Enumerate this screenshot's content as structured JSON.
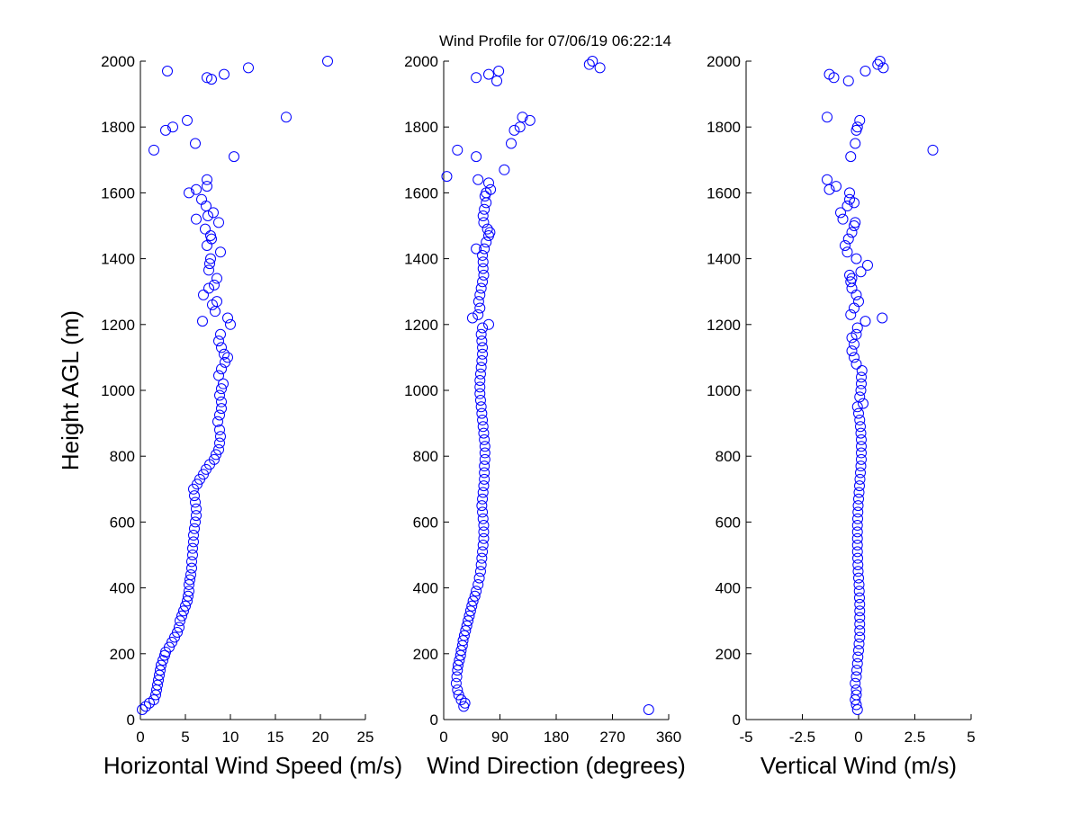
{
  "title": "Wind Profile for  07/06/19 06:22:14",
  "colors": {
    "marker": "#0000ff",
    "axis": "#000000",
    "background": "#ffffff"
  },
  "chart_data": [
    {
      "type": "scatter",
      "xlabel": "Horizontal Wind Speed (m/s)",
      "ylabel": "Height AGL (m)",
      "xlim": [
        0,
        25
      ],
      "ylim": [
        0,
        2000
      ],
      "xticks": [
        "0",
        "5",
        "10",
        "15",
        "20",
        "25"
      ],
      "yticks": [
        "0",
        "200",
        "400",
        "600",
        "800",
        "1000",
        "1200",
        "1400",
        "1600",
        "1800",
        "2000"
      ],
      "marker": "open-circle",
      "grid": false,
      "points": [
        [
          0.2,
          30
        ],
        [
          0.6,
          40
        ],
        [
          1.0,
          50
        ],
        [
          1.5,
          60
        ],
        [
          1.7,
          75
        ],
        [
          1.8,
          90
        ],
        [
          1.9,
          105
        ],
        [
          2.0,
          120
        ],
        [
          2.1,
          135
        ],
        [
          2.2,
          150
        ],
        [
          2.3,
          165
        ],
        [
          2.5,
          180
        ],
        [
          2.7,
          195
        ],
        [
          2.8,
          205
        ],
        [
          3.2,
          220
        ],
        [
          3.5,
          235
        ],
        [
          3.8,
          250
        ],
        [
          4.1,
          265
        ],
        [
          4.3,
          280
        ],
        [
          4.4,
          300
        ],
        [
          4.6,
          315
        ],
        [
          4.8,
          330
        ],
        [
          5.0,
          345
        ],
        [
          5.2,
          360
        ],
        [
          5.3,
          375
        ],
        [
          5.4,
          390
        ],
        [
          5.4,
          410
        ],
        [
          5.5,
          425
        ],
        [
          5.6,
          440
        ],
        [
          5.7,
          460
        ],
        [
          5.7,
          480
        ],
        [
          5.8,
          500
        ],
        [
          5.8,
          520
        ],
        [
          5.9,
          540
        ],
        [
          5.9,
          560
        ],
        [
          6.0,
          580
        ],
        [
          6.1,
          600
        ],
        [
          6.2,
          620
        ],
        [
          6.2,
          640
        ],
        [
          6.1,
          660
        ],
        [
          6.0,
          680
        ],
        [
          5.9,
          700
        ],
        [
          6.3,
          715
        ],
        [
          6.6,
          730
        ],
        [
          7.0,
          745
        ],
        [
          7.3,
          760
        ],
        [
          7.7,
          775
        ],
        [
          8.2,
          790
        ],
        [
          8.4,
          805
        ],
        [
          8.7,
          820
        ],
        [
          8.8,
          840
        ],
        [
          8.9,
          860
        ],
        [
          8.8,
          880
        ],
        [
          8.6,
          905
        ],
        [
          8.8,
          925
        ],
        [
          9.0,
          945
        ],
        [
          9.0,
          965
        ],
        [
          8.8,
          985
        ],
        [
          9.0,
          1005
        ],
        [
          9.2,
          1020
        ],
        [
          8.7,
          1045
        ],
        [
          9.0,
          1065
        ],
        [
          9.4,
          1085
        ],
        [
          9.7,
          1100
        ],
        [
          9.3,
          1110
        ],
        [
          9.0,
          1130
        ],
        [
          8.7,
          1150
        ],
        [
          8.9,
          1170
        ],
        [
          10.0,
          1200
        ],
        [
          6.9,
          1210
        ],
        [
          9.7,
          1220
        ],
        [
          8.3,
          1240
        ],
        [
          8.0,
          1260
        ],
        [
          8.5,
          1270
        ],
        [
          7.0,
          1290
        ],
        [
          7.6,
          1310
        ],
        [
          8.2,
          1320
        ],
        [
          8.5,
          1340
        ],
        [
          7.6,
          1365
        ],
        [
          7.7,
          1385
        ],
        [
          7.8,
          1400
        ],
        [
          8.9,
          1420
        ],
        [
          7.4,
          1440
        ],
        [
          7.9,
          1460
        ],
        [
          7.8,
          1470
        ],
        [
          7.2,
          1490
        ],
        [
          8.7,
          1510
        ],
        [
          7.5,
          1530
        ],
        [
          8.1,
          1540
        ],
        [
          7.3,
          1560
        ],
        [
          6.8,
          1580
        ],
        [
          5.4,
          1600
        ],
        [
          6.2,
          1610
        ],
        [
          7.4,
          1620
        ],
        [
          7.4,
          1640
        ],
        [
          6.2,
          1520
        ],
        [
          10.4,
          1710
        ],
        [
          1.5,
          1730
        ],
        [
          6.1,
          1750
        ],
        [
          2.8,
          1790
        ],
        [
          3.6,
          1800
        ],
        [
          5.2,
          1820
        ],
        [
          16.2,
          1830
        ],
        [
          7.4,
          1950
        ],
        [
          7.9,
          1945
        ],
        [
          9.3,
          1960
        ],
        [
          3.0,
          1970
        ],
        [
          12.0,
          1980
        ],
        [
          20.8,
          2000
        ]
      ]
    },
    {
      "type": "scatter",
      "xlabel": "Wind Direction (degrees)",
      "ylabel": "",
      "xlim": [
        0,
        360
      ],
      "ylim": [
        0,
        2000
      ],
      "xticks": [
        "0",
        "90",
        "180",
        "270",
        "360"
      ],
      "yticks": [
        "0",
        "200",
        "400",
        "600",
        "800",
        "1000",
        "1200",
        "1400",
        "1600",
        "1800",
        "2000"
      ],
      "marker": "open-circle",
      "grid": false,
      "points": [
        [
          32,
          40
        ],
        [
          34,
          50
        ],
        [
          28,
          60
        ],
        [
          24,
          75
        ],
        [
          22,
          90
        ],
        [
          20,
          110
        ],
        [
          21,
          130
        ],
        [
          22,
          150
        ],
        [
          23,
          165
        ],
        [
          25,
          180
        ],
        [
          27,
          195
        ],
        [
          28,
          210
        ],
        [
          30,
          225
        ],
        [
          31,
          240
        ],
        [
          33,
          255
        ],
        [
          35,
          270
        ],
        [
          37,
          285
        ],
        [
          39,
          300
        ],
        [
          41,
          315
        ],
        [
          43,
          330
        ],
        [
          45,
          345
        ],
        [
          47,
          360
        ],
        [
          50,
          375
        ],
        [
          52,
          390
        ],
        [
          55,
          410
        ],
        [
          57,
          430
        ],
        [
          59,
          450
        ],
        [
          60,
          470
        ],
        [
          61,
          490
        ],
        [
          62,
          510
        ],
        [
          63,
          530
        ],
        [
          64,
          550
        ],
        [
          64,
          570
        ],
        [
          64,
          590
        ],
        [
          63,
          610
        ],
        [
          62,
          630
        ],
        [
          61,
          650
        ],
        [
          62,
          670
        ],
        [
          63,
          690
        ],
        [
          64,
          710
        ],
        [
          65,
          730
        ],
        [
          65,
          750
        ],
        [
          65,
          770
        ],
        [
          66,
          790
        ],
        [
          66,
          810
        ],
        [
          66,
          830
        ],
        [
          65,
          850
        ],
        [
          64,
          870
        ],
        [
          63,
          890
        ],
        [
          62,
          910
        ],
        [
          61,
          930
        ],
        [
          60,
          950
        ],
        [
          59,
          970
        ],
        [
          58,
          990
        ],
        [
          58,
          1010
        ],
        [
          58,
          1030
        ],
        [
          59,
          1050
        ],
        [
          60,
          1070
        ],
        [
          61,
          1090
        ],
        [
          62,
          1110
        ],
        [
          62,
          1130
        ],
        [
          61,
          1150
        ],
        [
          60,
          1170
        ],
        [
          62,
          1190
        ],
        [
          72,
          1200
        ],
        [
          46,
          1220
        ],
        [
          55,
          1230
        ],
        [
          58,
          1250
        ],
        [
          56,
          1270
        ],
        [
          58,
          1290
        ],
        [
          60,
          1310
        ],
        [
          62,
          1330
        ],
        [
          64,
          1350
        ],
        [
          63,
          1370
        ],
        [
          63,
          1390
        ],
        [
          62,
          1410
        ],
        [
          65,
          1430
        ],
        [
          52,
          1430
        ],
        [
          68,
          1450
        ],
        [
          72,
          1470
        ],
        [
          74,
          1480
        ],
        [
          70,
          1490
        ],
        [
          64,
          1510
        ],
        [
          63,
          1530
        ],
        [
          65,
          1550
        ],
        [
          68,
          1570
        ],
        [
          66,
          1590
        ],
        [
          68,
          1600
        ],
        [
          75,
          1610
        ],
        [
          72,
          1630
        ],
        [
          55,
          1640
        ],
        [
          5,
          1650
        ],
        [
          97,
          1670
        ],
        [
          52,
          1710
        ],
        [
          22,
          1730
        ],
        [
          108,
          1750
        ],
        [
          113,
          1790
        ],
        [
          122,
          1800
        ],
        [
          138,
          1820
        ],
        [
          126,
          1830
        ],
        [
          85,
          1940
        ],
        [
          52,
          1950
        ],
        [
          88,
          1970
        ],
        [
          72,
          1960
        ],
        [
          233,
          1990
        ],
        [
          238,
          2000
        ],
        [
          250,
          1980
        ],
        [
          328,
          30
        ]
      ]
    },
    {
      "type": "scatter",
      "xlabel": "Vertical Wind (m/s)",
      "ylabel": "",
      "xlim": [
        -5,
        5
      ],
      "ylim": [
        0,
        2000
      ],
      "xticks": [
        "-5",
        "-2.5",
        "0",
        "2.5",
        "5"
      ],
      "yticks": [
        "0",
        "200",
        "400",
        "600",
        "800",
        "1000",
        "1200",
        "1400",
        "1600",
        "1800",
        "2000"
      ],
      "marker": "open-circle",
      "grid": false,
      "points": [
        [
          -0.05,
          30
        ],
        [
          -0.1,
          45
        ],
        [
          -0.15,
          60
        ],
        [
          -0.1,
          75
        ],
        [
          -0.1,
          90
        ],
        [
          -0.15,
          110
        ],
        [
          -0.1,
          130
        ],
        [
          -0.08,
          150
        ],
        [
          -0.05,
          170
        ],
        [
          -0.03,
          190
        ],
        [
          0.0,
          210
        ],
        [
          0.02,
          230
        ],
        [
          0.05,
          250
        ],
        [
          0.05,
          270
        ],
        [
          0.05,
          290
        ],
        [
          0.05,
          310
        ],
        [
          0.05,
          330
        ],
        [
          0.05,
          350
        ],
        [
          0.04,
          370
        ],
        [
          0.03,
          390
        ],
        [
          0.02,
          410
        ],
        [
          0.0,
          430
        ],
        [
          -0.02,
          450
        ],
        [
          -0.03,
          470
        ],
        [
          -0.04,
          490
        ],
        [
          -0.05,
          510
        ],
        [
          -0.05,
          530
        ],
        [
          -0.05,
          550
        ],
        [
          -0.05,
          570
        ],
        [
          -0.05,
          590
        ],
        [
          -0.04,
          610
        ],
        [
          -0.03,
          630
        ],
        [
          -0.02,
          650
        ],
        [
          0.0,
          670
        ],
        [
          0.02,
          690
        ],
        [
          0.04,
          710
        ],
        [
          0.06,
          730
        ],
        [
          0.08,
          750
        ],
        [
          0.1,
          770
        ],
        [
          0.12,
          790
        ],
        [
          0.12,
          810
        ],
        [
          0.12,
          830
        ],
        [
          0.12,
          850
        ],
        [
          0.1,
          870
        ],
        [
          0.08,
          890
        ],
        [
          0.05,
          910
        ],
        [
          0.0,
          930
        ],
        [
          -0.05,
          950
        ],
        [
          0.2,
          960
        ],
        [
          0.05,
          980
        ],
        [
          0.1,
          1000
        ],
        [
          0.12,
          1020
        ],
        [
          0.12,
          1040
        ],
        [
          0.15,
          1060
        ],
        [
          -0.1,
          1080
        ],
        [
          -0.2,
          1100
        ],
        [
          -0.3,
          1120
        ],
        [
          -0.2,
          1140
        ],
        [
          -0.3,
          1160
        ],
        [
          -0.1,
          1170
        ],
        [
          -0.05,
          1190
        ],
        [
          0.3,
          1210
        ],
        [
          1.05,
          1220
        ],
        [
          -0.35,
          1230
        ],
        [
          -0.2,
          1250
        ],
        [
          0.0,
          1270
        ],
        [
          -0.1,
          1290
        ],
        [
          -0.3,
          1310
        ],
        [
          -0.35,
          1330
        ],
        [
          -0.3,
          1340
        ],
        [
          -0.4,
          1350
        ],
        [
          0.1,
          1360
        ],
        [
          0.4,
          1380
        ],
        [
          -0.1,
          1400
        ],
        [
          -0.5,
          1420
        ],
        [
          -0.6,
          1440
        ],
        [
          -0.45,
          1460
        ],
        [
          -0.3,
          1480
        ],
        [
          -0.2,
          1500
        ],
        [
          -0.15,
          1510
        ],
        [
          -0.7,
          1520
        ],
        [
          -0.8,
          1540
        ],
        [
          -0.5,
          1560
        ],
        [
          -0.2,
          1570
        ],
        [
          -0.4,
          1580
        ],
        [
          -0.4,
          1600
        ],
        [
          -1.0,
          1620
        ],
        [
          -1.4,
          1640
        ],
        [
          -1.3,
          1610
        ],
        [
          -0.35,
          1710
        ],
        [
          3.3,
          1730
        ],
        [
          -0.15,
          1750
        ],
        [
          -0.1,
          1790
        ],
        [
          -0.05,
          1800
        ],
        [
          0.05,
          1820
        ],
        [
          -1.4,
          1830
        ],
        [
          -1.3,
          1960
        ],
        [
          -1.1,
          1950
        ],
        [
          -0.45,
          1940
        ],
        [
          0.3,
          1970
        ],
        [
          0.85,
          1990
        ],
        [
          0.95,
          2000
        ],
        [
          1.1,
          1980
        ]
      ]
    }
  ]
}
